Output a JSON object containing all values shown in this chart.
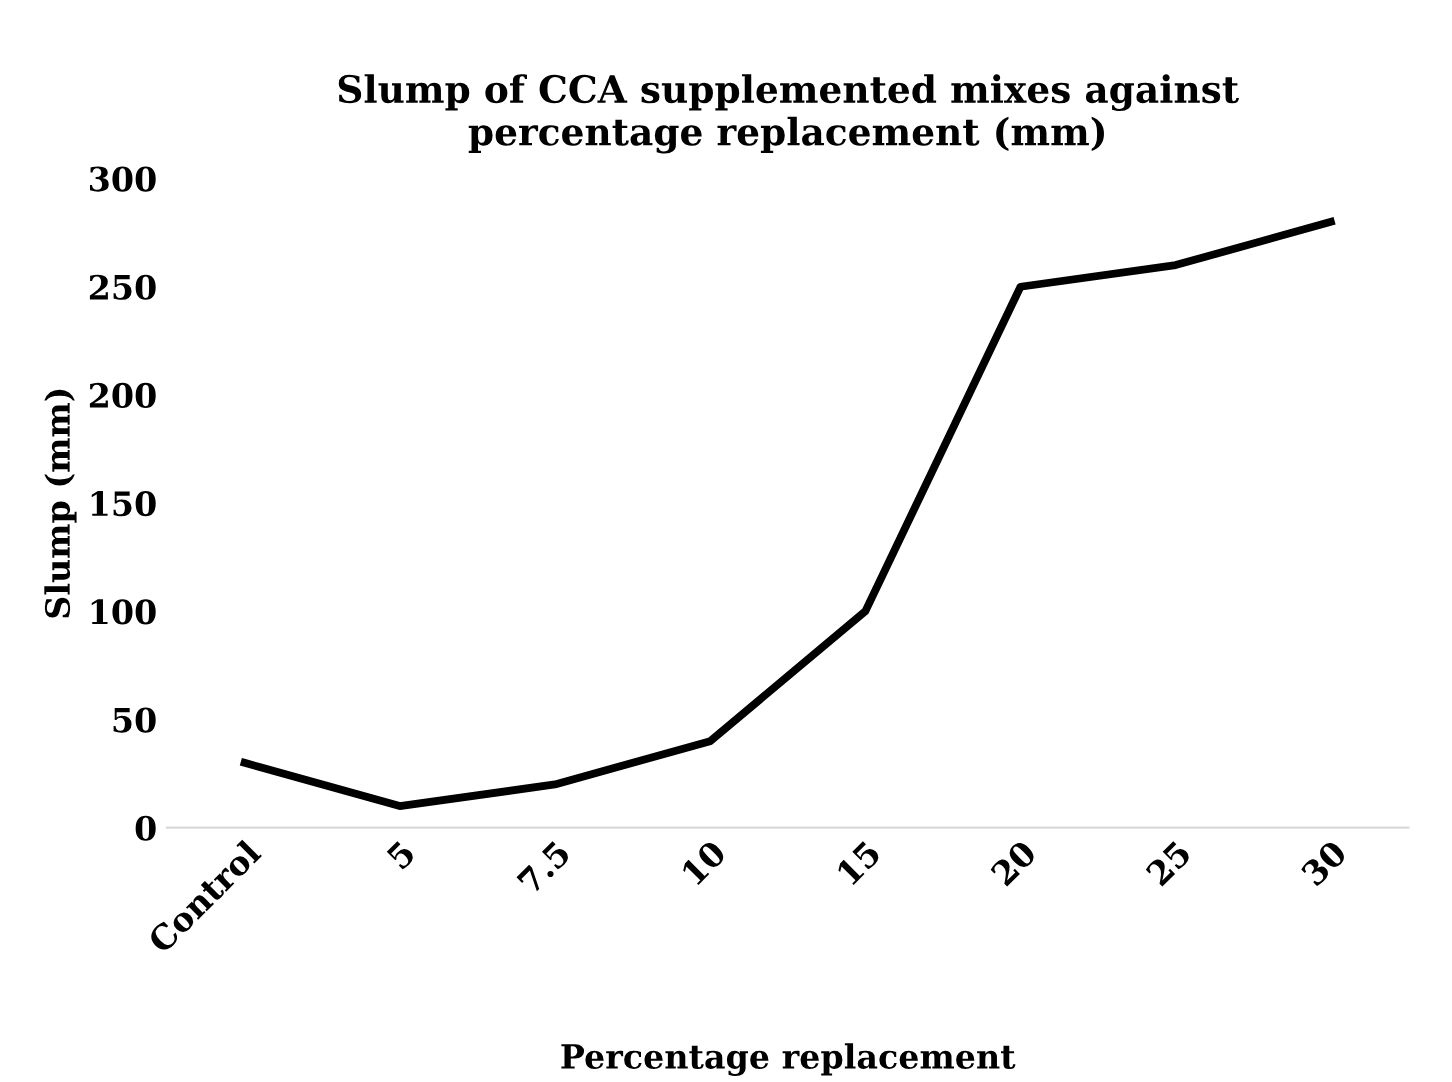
{
  "chart_data": {
    "type": "line",
    "title": "Slump of CCA supplemented mixes against\npercentage replacement (mm)",
    "xlabel": "Percentage replacement",
    "ylabel": "Slump (mm)",
    "categories": [
      "Control",
      "5",
      "7.5",
      "10",
      "15",
      "20",
      "25",
      "30"
    ],
    "series": [
      {
        "color": "#000000",
        "values": [
          30,
          10,
          20,
          40,
          100,
          250,
          260,
          280
        ]
      }
    ],
    "ylim": [
      0,
      300
    ],
    "yticks": [
      0,
      50,
      100,
      150,
      200,
      250,
      300
    ],
    "grid": false,
    "legend": false,
    "marker": "none",
    "line_style": "solid"
  }
}
